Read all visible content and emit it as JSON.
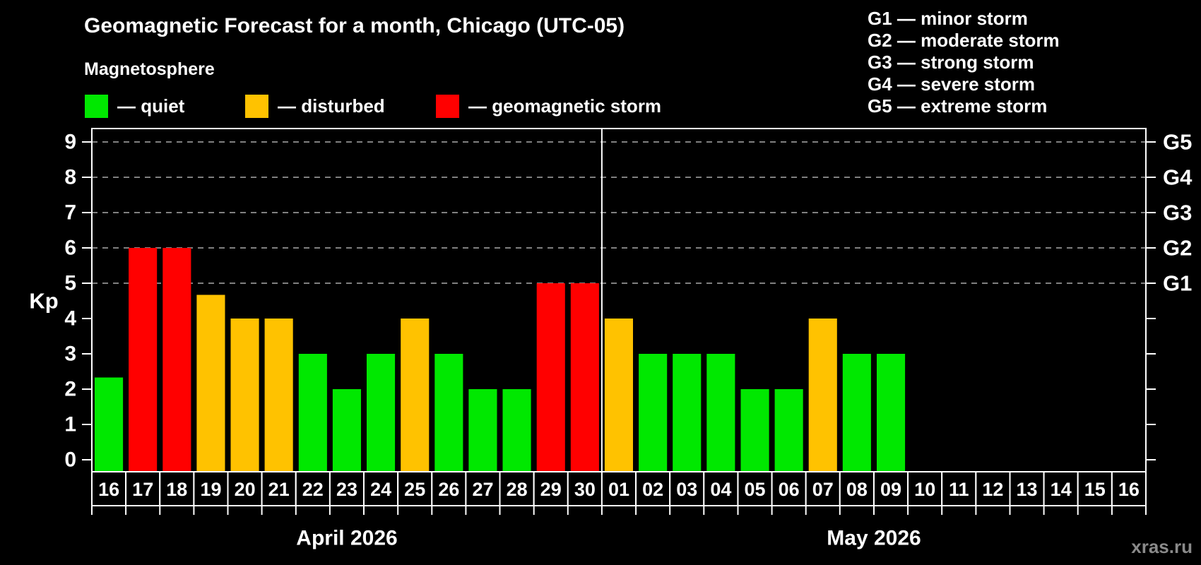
{
  "subtitle": "Magnetosphere",
  "watermark": "xras.ru",
  "legend": {
    "items": [
      {
        "key": "quiet",
        "label": "— quiet",
        "color": "#00e800"
      },
      {
        "key": "disturbed",
        "label": "— disturbed",
        "color": "#ffc200"
      },
      {
        "key": "storm",
        "label": "— geomagnetic storm",
        "color": "#ff0000"
      }
    ]
  },
  "g_scale": [
    "G1 — minor storm",
    "G2 — moderate storm",
    "G3 — strong storm",
    "G4 — severe storm",
    "G5 — extreme storm"
  ],
  "chart_data": {
    "type": "bar",
    "title": "Geomagnetic Forecast for a month, Chicago (UTC-05)",
    "ylabel": "Kp",
    "ylim": [
      0,
      9.4
    ],
    "yticks": [
      0,
      1,
      2,
      3,
      4,
      5,
      6,
      7,
      8,
      9
    ],
    "gridlines": {
      "style": "dashed",
      "kp": [
        5,
        6,
        7,
        8,
        9
      ]
    },
    "right_axis": [
      {
        "kp": 5,
        "label": "G1"
      },
      {
        "kp": 6,
        "label": "G2"
      },
      {
        "kp": 7,
        "label": "G3"
      },
      {
        "kp": 8,
        "label": "G4"
      },
      {
        "kp": 9,
        "label": "G5"
      }
    ],
    "level_colors": {
      "quiet": "#00e800",
      "disturbed": "#ffc200",
      "storm": "#ff0000"
    },
    "months": [
      {
        "label": "April 2026",
        "days": [
          {
            "d": "16",
            "kp": 2.33,
            "level": "quiet"
          },
          {
            "d": "17",
            "kp": 6,
            "level": "storm"
          },
          {
            "d": "18",
            "kp": 6,
            "level": "storm"
          },
          {
            "d": "19",
            "kp": 4.67,
            "level": "disturbed"
          },
          {
            "d": "20",
            "kp": 4,
            "level": "disturbed"
          },
          {
            "d": "21",
            "kp": 4,
            "level": "disturbed"
          },
          {
            "d": "22",
            "kp": 3,
            "level": "quiet"
          },
          {
            "d": "23",
            "kp": 2,
            "level": "quiet"
          },
          {
            "d": "24",
            "kp": 3,
            "level": "quiet"
          },
          {
            "d": "25",
            "kp": 4,
            "level": "disturbed"
          },
          {
            "d": "26",
            "kp": 3,
            "level": "quiet"
          },
          {
            "d": "27",
            "kp": 2,
            "level": "quiet"
          },
          {
            "d": "28",
            "kp": 2,
            "level": "quiet"
          },
          {
            "d": "29",
            "kp": 5,
            "level": "storm"
          },
          {
            "d": "30",
            "kp": 5,
            "level": "storm"
          }
        ]
      },
      {
        "label": "May 2026",
        "days": [
          {
            "d": "01",
            "kp": 4,
            "level": "disturbed"
          },
          {
            "d": "02",
            "kp": 3,
            "level": "quiet"
          },
          {
            "d": "03",
            "kp": 3,
            "level": "quiet"
          },
          {
            "d": "04",
            "kp": 3,
            "level": "quiet"
          },
          {
            "d": "05",
            "kp": 2,
            "level": "quiet"
          },
          {
            "d": "06",
            "kp": 2,
            "level": "quiet"
          },
          {
            "d": "07",
            "kp": 4,
            "level": "disturbed"
          },
          {
            "d": "08",
            "kp": 3,
            "level": "quiet"
          },
          {
            "d": "09",
            "kp": 3,
            "level": "quiet"
          },
          {
            "d": "10",
            "kp": null,
            "level": null
          },
          {
            "d": "11",
            "kp": null,
            "level": null
          },
          {
            "d": "12",
            "kp": null,
            "level": null
          },
          {
            "d": "13",
            "kp": null,
            "level": null
          },
          {
            "d": "14",
            "kp": null,
            "level": null
          },
          {
            "d": "15",
            "kp": null,
            "level": null
          },
          {
            "d": "16",
            "kp": null,
            "level": null
          }
        ]
      }
    ]
  }
}
